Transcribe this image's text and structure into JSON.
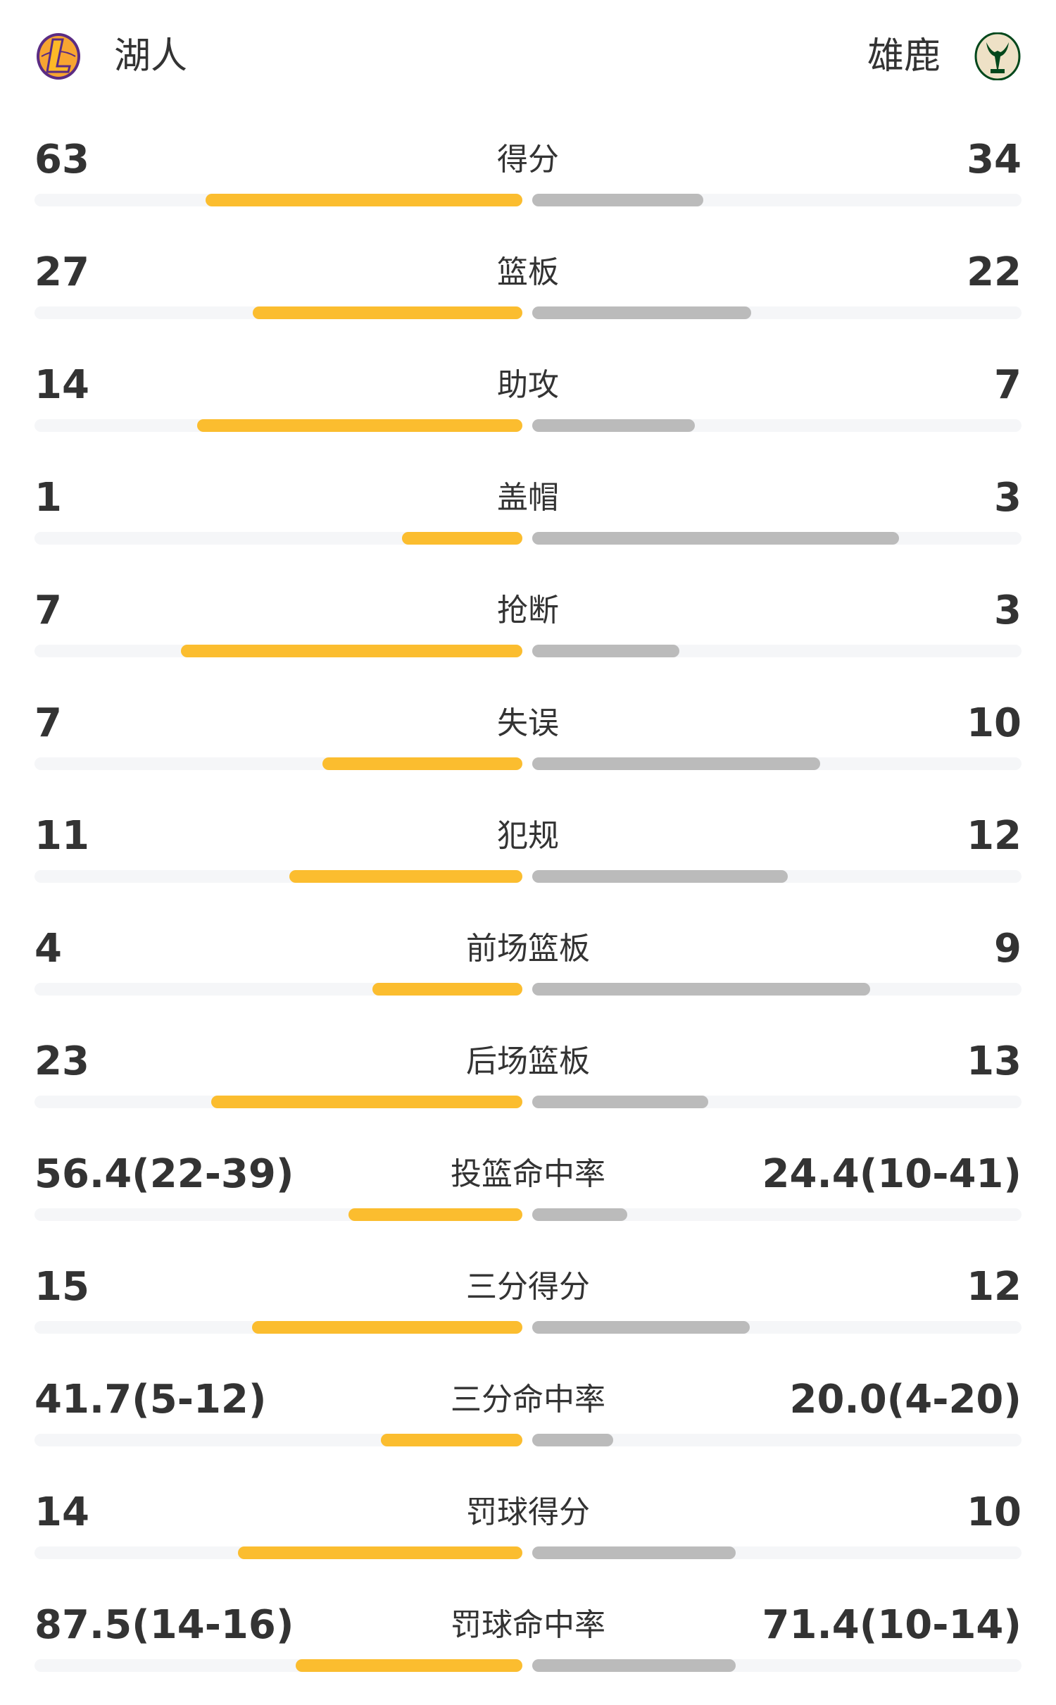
{
  "header": {
    "home": {
      "name": "湖人",
      "logo": "lakers-logo"
    },
    "away": {
      "name": "雄鹿",
      "logo": "bucks-logo"
    }
  },
  "colors": {
    "home_bar": "#FBBD2F",
    "away_bar": "#BBBBBB",
    "track": "#F5F6F8"
  },
  "stats": [
    {
      "label": "得分",
      "home": "63",
      "away": "34",
      "home_fill": 0.649,
      "away_fill": 0.35
    },
    {
      "label": "篮板",
      "home": "27",
      "away": "22",
      "home_fill": 0.552,
      "away_fill": 0.447
    },
    {
      "label": "助攻",
      "home": "14",
      "away": "7",
      "home_fill": 0.667,
      "away_fill": 0.333
    },
    {
      "label": "盖帽",
      "home": "1",
      "away": "3",
      "home_fill": 0.247,
      "away_fill": 0.749
    },
    {
      "label": "抢断",
      "home": "7",
      "away": "3",
      "home_fill": 0.7,
      "away_fill": 0.3
    },
    {
      "label": "失误",
      "home": "7",
      "away": "10",
      "home_fill": 0.41,
      "away_fill": 0.588
    },
    {
      "label": "犯规",
      "home": "11",
      "away": "12",
      "home_fill": 0.477,
      "away_fill": 0.522
    },
    {
      "label": "前场篮板",
      "home": "4",
      "away": "9",
      "home_fill": 0.307,
      "away_fill": 0.69
    },
    {
      "label": "后场篮板",
      "home": "23",
      "away": "13",
      "home_fill": 0.638,
      "away_fill": 0.36
    },
    {
      "label": "投篮命中率",
      "home": "56.4(22-39)",
      "away": "24.4(10-41)",
      "home_fill": 0.357,
      "away_fill": 0.194
    },
    {
      "label": "三分得分",
      "home": "15",
      "away": "12",
      "home_fill": 0.554,
      "away_fill": 0.445
    },
    {
      "label": "三分命中率",
      "home": "41.7(5-12)",
      "away": "20.0(4-20)",
      "home_fill": 0.29,
      "away_fill": 0.165
    },
    {
      "label": "罚球得分",
      "home": "14",
      "away": "10",
      "home_fill": 0.583,
      "away_fill": 0.416
    },
    {
      "label": "罚球命中率",
      "home": "87.5(14-16)",
      "away": "71.4(10-14)",
      "home_fill": 0.464,
      "away_fill": 0.416
    }
  ]
}
